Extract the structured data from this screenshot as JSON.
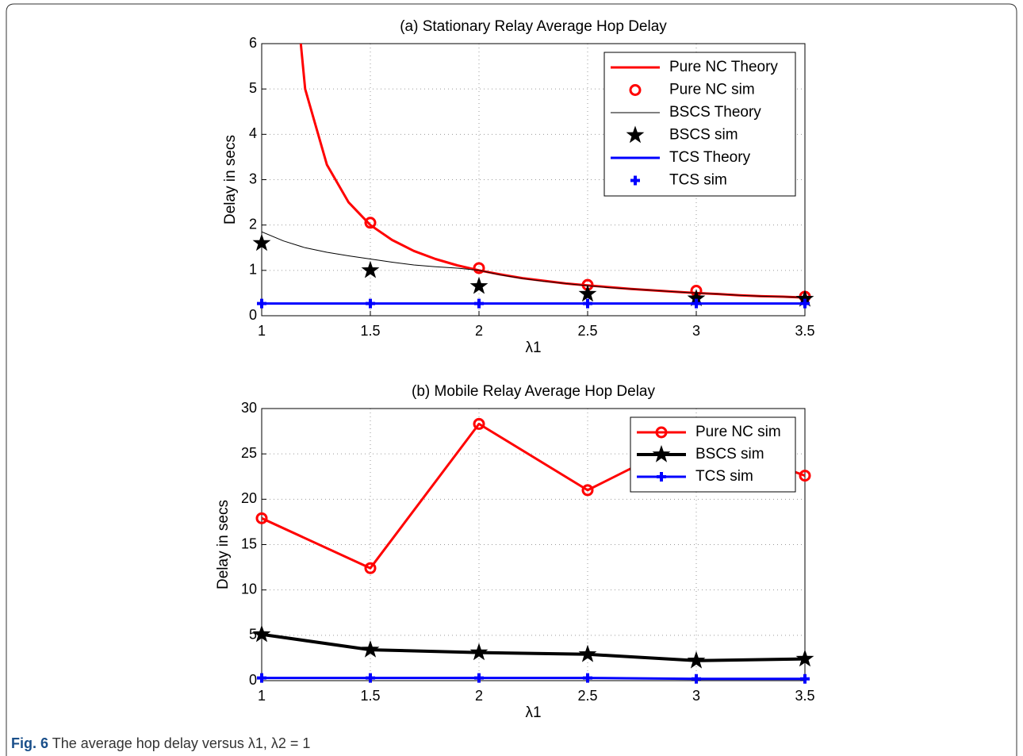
{
  "chart_data": [
    {
      "type": "line",
      "title": "(a) Stationary Relay Average Hop Delay",
      "xlabel": "λ1",
      "ylabel": "Delay in secs",
      "x": [
        1,
        1.1,
        1.2,
        1.3,
        1.4,
        1.5,
        1.6,
        1.7,
        1.8,
        1.9,
        2,
        2.1,
        2.2,
        2.3,
        2.4,
        2.5,
        2.6,
        2.7,
        2.8,
        2.9,
        3,
        3.1,
        3.2,
        3.3,
        3.4,
        3.5
      ],
      "xlim": [
        1,
        3.5
      ],
      "xticks": [
        1,
        1.5,
        2,
        2.5,
        3,
        3.5
      ],
      "ylim": [
        0,
        6
      ],
      "yticks": [
        0,
        1,
        2,
        3,
        4,
        5,
        6
      ],
      "grid": true,
      "legend": "upper right",
      "series": [
        {
          "name": "Pure NC Theory",
          "color": "#ff0000",
          "style": "line",
          "width": 3,
          "values": [
            null,
            10,
            5,
            3.33,
            2.5,
            2,
            1.67,
            1.43,
            1.25,
            1.11,
            1,
            0.91,
            0.83,
            0.77,
            0.71,
            0.67,
            0.63,
            0.59,
            0.56,
            0.53,
            0.5,
            0.48,
            0.45,
            0.43,
            0.42,
            0.4
          ]
        },
        {
          "name": "Pure NC sim",
          "color": "#ff0000",
          "style": "markers",
          "marker": "circle",
          "values": [
            null,
            null,
            null,
            null,
            null,
            2.05,
            null,
            null,
            null,
            null,
            1.05,
            null,
            null,
            null,
            null,
            0.68,
            null,
            null,
            null,
            null,
            0.55,
            null,
            null,
            null,
            null,
            0.42
          ]
        },
        {
          "name": "BSCS Theory",
          "color": "#000000",
          "style": "line",
          "width": 1,
          "values": [
            1.85,
            1.65,
            1.5,
            1.4,
            1.32,
            1.25,
            1.18,
            1.12,
            1.08,
            1.05,
            1.0,
            0.9,
            0.82,
            0.76,
            0.71,
            0.66,
            0.62,
            0.59,
            0.56,
            0.53,
            0.5,
            0.48,
            0.45,
            0.43,
            0.42,
            0.4
          ]
        },
        {
          "name": "BSCS sim",
          "color": "#000000",
          "style": "markers",
          "marker": "star",
          "values": [
            1.6,
            null,
            null,
            null,
            null,
            1.0,
            null,
            null,
            null,
            null,
            0.65,
            null,
            null,
            null,
            null,
            0.48,
            null,
            null,
            null,
            null,
            0.38,
            null,
            null,
            null,
            null,
            0.37
          ]
        },
        {
          "name": "TCS Theory",
          "color": "#0000ff",
          "style": "line",
          "width": 3,
          "values": [
            0.27,
            0.27,
            0.27,
            0.27,
            0.27,
            0.27,
            0.27,
            0.27,
            0.27,
            0.27,
            0.27,
            0.27,
            0.27,
            0.27,
            0.27,
            0.27,
            0.27,
            0.27,
            0.27,
            0.27,
            0.27,
            0.27,
            0.27,
            0.27,
            0.27,
            0.27
          ]
        },
        {
          "name": "TCS sim",
          "color": "#0000ff",
          "style": "markers",
          "marker": "plus",
          "values": [
            0.27,
            null,
            null,
            null,
            null,
            0.27,
            null,
            null,
            null,
            null,
            0.27,
            null,
            null,
            null,
            null,
            0.27,
            null,
            null,
            null,
            null,
            0.27,
            null,
            null,
            null,
            null,
            0.27
          ]
        }
      ]
    },
    {
      "type": "line",
      "title": "(b) Mobile Relay Average Hop Delay",
      "xlabel": "λ1",
      "ylabel": "Delay in secs",
      "x": [
        1,
        1.5,
        2,
        2.5,
        3,
        3.5
      ],
      "xlim": [
        1,
        3.5
      ],
      "xticks": [
        1,
        1.5,
        2,
        2.5,
        3,
        3.5
      ],
      "ylim": [
        0,
        30
      ],
      "yticks": [
        0,
        5,
        10,
        15,
        20,
        25,
        30
      ],
      "grid": true,
      "legend": "upper right",
      "series": [
        {
          "name": "Pure NC sim",
          "color": "#ff0000",
          "style": "line-markers",
          "width": 3,
          "marker": "circle",
          "values": [
            17.9,
            12.4,
            28.3,
            21.0,
            27.0,
            22.6
          ]
        },
        {
          "name": "BSCS sim",
          "color": "#000000",
          "style": "line-markers",
          "width": 4,
          "marker": "star",
          "values": [
            5.1,
            3.4,
            3.1,
            2.9,
            2.2,
            2.4
          ]
        },
        {
          "name": "TCS sim",
          "color": "#0000ff",
          "style": "line-markers",
          "width": 3,
          "marker": "plus",
          "values": [
            0.3,
            0.3,
            0.3,
            0.3,
            0.2,
            0.2
          ]
        }
      ]
    }
  ],
  "caption": {
    "label": "Fig. 6",
    "text": "The average hop delay versus λ1, λ2 = 1"
  }
}
